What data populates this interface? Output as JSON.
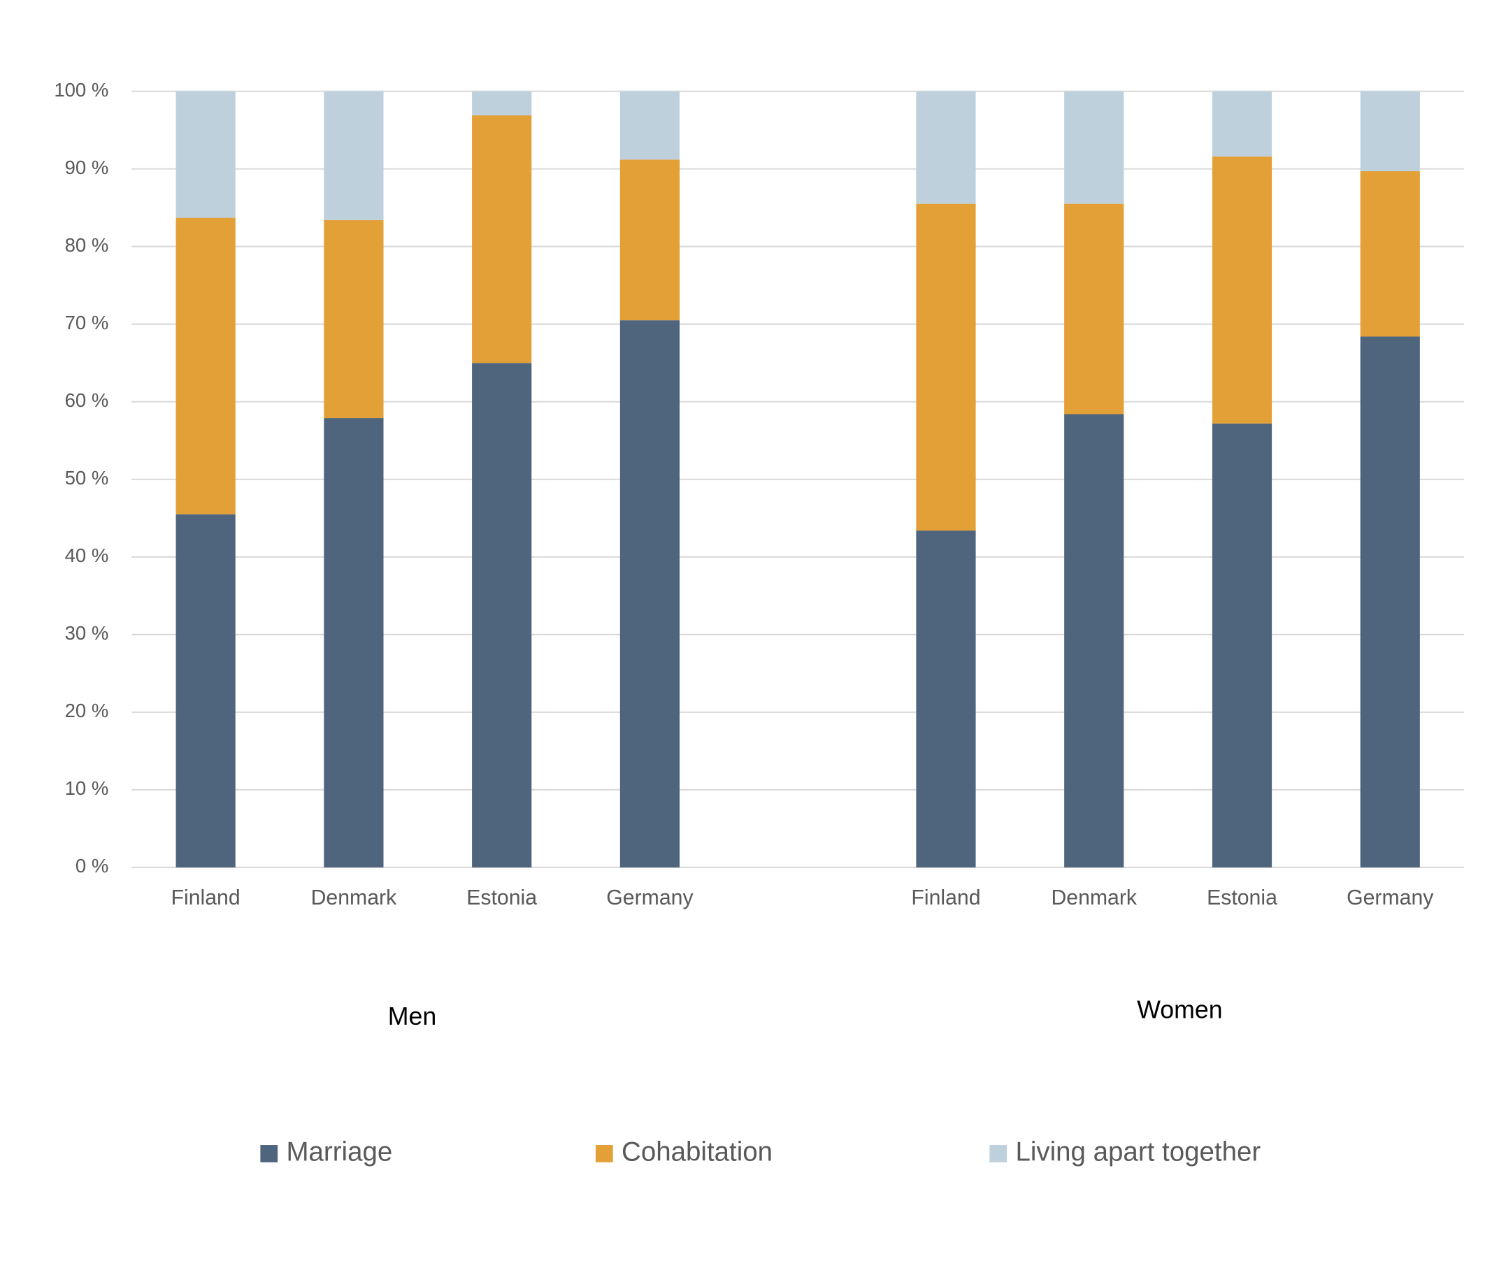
{
  "chart_data": {
    "type": "stacked_bar",
    "categories": [
      "Finland",
      "Denmark",
      "Estonia",
      "Germany",
      null,
      "Finland",
      "Denmark",
      "Estonia",
      "Germany"
    ],
    "group_labels": [
      "Men",
      "Women"
    ],
    "series": [
      {
        "name": "Marriage",
        "color": "#4f657e",
        "values": [
          45.5,
          57.9,
          65.0,
          70.5,
          null,
          43.4,
          58.4,
          57.2,
          68.4
        ]
      },
      {
        "name": "Cohabitation",
        "color": "#e2a037",
        "values": [
          38.2,
          25.5,
          31.9,
          20.7,
          null,
          42.1,
          27.1,
          34.4,
          21.3
        ]
      },
      {
        "name": "Living apart together",
        "color": "#bfd0dd",
        "values": [
          16.3,
          16.6,
          3.1,
          8.8,
          null,
          14.5,
          14.5,
          8.4,
          10.3
        ]
      }
    ],
    "ylim": [
      0,
      100
    ],
    "yticks": [
      {
        "value": 0,
        "label": "0 %"
      },
      {
        "value": 10,
        "label": "10 %"
      },
      {
        "value": 20,
        "label": "20 %"
      },
      {
        "value": 30,
        "label": "30 %"
      },
      {
        "value": 40,
        "label": "40 %"
      },
      {
        "value": 50,
        "label": "50 %"
      },
      {
        "value": 60,
        "label": "60 %"
      },
      {
        "value": 70,
        "label": "70 %"
      },
      {
        "value": 80,
        "label": "80 %"
      },
      {
        "value": 90,
        "label": "90 %"
      },
      {
        "value": 100,
        "label": "100 %"
      }
    ],
    "grid": true,
    "legend": "bottom"
  }
}
